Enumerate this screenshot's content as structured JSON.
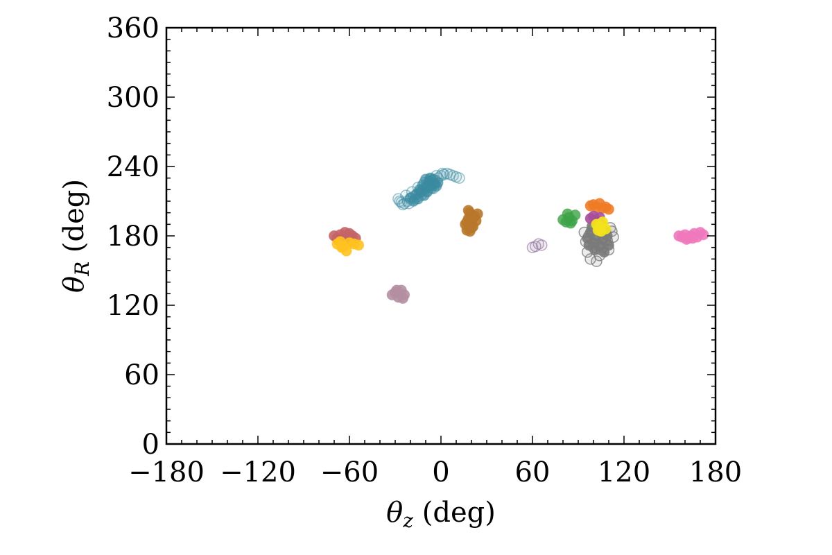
{
  "chart_data": {
    "type": "scatter",
    "title": "",
    "xlabel": {
      "symbol": "θ",
      "sub": "z",
      "unit": " (deg)"
    },
    "ylabel": {
      "symbol": "θ",
      "sub": "R",
      "unit": " (deg)"
    },
    "xlim": [
      -180,
      180
    ],
    "ylim": [
      0,
      360
    ],
    "x_ticks": [
      -180,
      -120,
      -60,
      0,
      60,
      120,
      180
    ],
    "x_tick_labels": [
      "−180",
      "−120",
      "−60",
      "0",
      "60",
      "120",
      "180"
    ],
    "y_ticks": [
      0,
      60,
      120,
      180,
      240,
      300,
      360
    ],
    "y_tick_labels": [
      "0",
      "60",
      "120",
      "180",
      "240",
      "300",
      "360"
    ],
    "grid": false,
    "clusters": [
      {
        "color": "#3a8aa0",
        "opacity": 0.25,
        "filled": false,
        "points": [
          [
            -28,
            212
          ],
          [
            -26,
            209
          ],
          [
            -24,
            208
          ],
          [
            -22,
            210
          ],
          [
            -20,
            212
          ],
          [
            -18,
            214
          ],
          [
            -16,
            216
          ],
          [
            -14,
            218
          ],
          [
            -12,
            220
          ],
          [
            -10,
            222
          ],
          [
            -8,
            224
          ],
          [
            -6,
            226
          ],
          [
            -4,
            228
          ],
          [
            -2,
            230
          ],
          [
            0,
            232
          ],
          [
            2,
            233
          ],
          [
            4,
            234
          ],
          [
            6,
            233
          ],
          [
            8,
            232
          ],
          [
            10,
            231
          ],
          [
            12,
            230
          ],
          [
            -25,
            207
          ],
          [
            -21,
            208
          ],
          [
            -17,
            212
          ],
          [
            -13,
            215
          ],
          [
            -9,
            219
          ],
          [
            -5,
            221
          ],
          [
            -11,
            226
          ],
          [
            -7,
            229
          ],
          [
            -3,
            232
          ],
          [
            1,
            234
          ],
          [
            -15,
            222
          ],
          [
            -19,
            218
          ],
          [
            -23,
            215
          ],
          [
            -27,
            210
          ]
        ]
      },
      {
        "color": "#3a8aa0",
        "opacity": 0.7,
        "filled": true,
        "points": [
          [
            -16,
            216
          ],
          [
            -13,
            218
          ],
          [
            -10,
            221
          ],
          [
            -7,
            223
          ],
          [
            -4,
            225
          ],
          [
            -12,
            224
          ],
          [
            -8,
            227
          ],
          [
            -5,
            229
          ],
          [
            -14,
            220
          ],
          [
            -9,
            218
          ],
          [
            -6,
            221
          ],
          [
            -3,
            223
          ],
          [
            -11,
            215
          ],
          [
            -15,
            212
          ],
          [
            -18,
            210
          ],
          [
            -20,
            213
          ],
          [
            -2,
            226
          ],
          [
            -7,
            230
          ],
          [
            -10,
            229
          ]
        ]
      },
      {
        "color": "#b8772a",
        "opacity": 0.9,
        "filled": true,
        "points": [
          [
            16,
            190
          ],
          [
            17,
            185
          ],
          [
            18,
            195
          ],
          [
            19,
            200
          ],
          [
            20,
            192
          ],
          [
            21,
            188
          ],
          [
            22,
            197
          ],
          [
            23,
            193
          ],
          [
            24,
            199
          ],
          [
            18,
            202
          ],
          [
            19,
            184
          ],
          [
            21,
            196
          ],
          [
            17,
            192
          ],
          [
            20,
            187
          ]
        ]
      },
      {
        "color": "#c46466",
        "opacity": 0.9,
        "filled": true,
        "points": [
          [
            -70,
            180
          ],
          [
            -68,
            178
          ],
          [
            -66,
            181
          ],
          [
            -64,
            177
          ],
          [
            -62,
            179
          ],
          [
            -60,
            182
          ],
          [
            -58,
            180
          ],
          [
            -56,
            178
          ],
          [
            -67,
            176
          ],
          [
            -63,
            183
          ],
          [
            -59,
            176
          ]
        ]
      },
      {
        "color": "#ffc21f",
        "opacity": 0.9,
        "filled": true,
        "points": [
          [
            -68,
            173
          ],
          [
            -66,
            175
          ],
          [
            -64,
            171
          ],
          [
            -62,
            167
          ],
          [
            -60,
            174
          ],
          [
            -57,
            173
          ],
          [
            -54,
            172
          ],
          [
            -65,
            170
          ]
        ]
      },
      {
        "color": "#b48fa2",
        "opacity": 0.9,
        "filled": true,
        "points": [
          [
            -32,
            129
          ],
          [
            -30,
            131
          ],
          [
            -28,
            127
          ],
          [
            -26,
            133
          ],
          [
            -24,
            129
          ],
          [
            -25,
            126
          ],
          [
            -29,
            133
          ]
        ]
      },
      {
        "color": "#9b82a8",
        "opacity": 0.35,
        "filled": false,
        "points": [
          [
            60,
            170
          ],
          [
            62,
            171
          ],
          [
            64,
            173
          ],
          [
            66,
            172
          ]
        ]
      },
      {
        "color": "#3ca247",
        "opacity": 0.8,
        "filled": true,
        "points": [
          [
            80,
            194
          ],
          [
            82,
            192
          ],
          [
            84,
            196
          ],
          [
            86,
            193
          ],
          [
            88,
            198
          ],
          [
            85,
            191
          ],
          [
            83,
            199
          ]
        ]
      },
      {
        "color": "#7a7a7a",
        "opacity": 0.4,
        "filled": false,
        "points": [
          [
            95,
            175
          ],
          [
            97,
            180
          ],
          [
            99,
            185
          ],
          [
            101,
            178
          ],
          [
            103,
            172
          ],
          [
            105,
            168
          ],
          [
            107,
            182
          ],
          [
            109,
            176
          ],
          [
            111,
            187
          ],
          [
            113,
            179
          ],
          [
            96,
            166
          ],
          [
            98,
            160
          ],
          [
            100,
            170
          ],
          [
            102,
            158
          ],
          [
            104,
            163
          ],
          [
            106,
            170
          ],
          [
            108,
            177
          ],
          [
            110,
            168
          ],
          [
            94,
            183
          ],
          [
            112,
            184
          ]
        ]
      },
      {
        "color": "#7a7a7a",
        "opacity": 0.9,
        "filled": true,
        "points": [
          [
            96,
            178
          ],
          [
            98,
            183
          ],
          [
            100,
            174
          ],
          [
            102,
            180
          ],
          [
            104,
            171
          ],
          [
            106,
            177
          ],
          [
            108,
            184
          ],
          [
            110,
            172
          ],
          [
            99,
            188
          ],
          [
            103,
            186
          ],
          [
            101,
            168
          ],
          [
            105,
            190
          ],
          [
            107,
            166
          ],
          [
            97,
            172
          ],
          [
            109,
            180
          ]
        ]
      },
      {
        "color": "#ef7b26",
        "opacity": 0.9,
        "filled": true,
        "points": [
          [
            98,
            206
          ],
          [
            100,
            207
          ],
          [
            102,
            205
          ],
          [
            104,
            208
          ],
          [
            106,
            204
          ],
          [
            108,
            205
          ],
          [
            110,
            203
          ]
        ]
      },
      {
        "color": "#a74e9a",
        "opacity": 0.9,
        "filled": true,
        "points": [
          [
            98,
            195
          ],
          [
            100,
            197
          ],
          [
            102,
            193
          ],
          [
            104,
            196
          ]
        ]
      },
      {
        "color": "#f2e31e",
        "opacity": 0.95,
        "filled": true,
        "points": [
          [
            102,
            190
          ],
          [
            104,
            188
          ],
          [
            106,
            192
          ],
          [
            108,
            186
          ],
          [
            105,
            184
          ],
          [
            103,
            185
          ]
        ]
      },
      {
        "color": "#ef78bd",
        "opacity": 0.9,
        "filled": true,
        "points": [
          [
            156,
            180
          ],
          [
            158,
            179
          ],
          [
            160,
            181
          ],
          [
            162,
            178
          ],
          [
            164,
            180
          ],
          [
            166,
            182
          ],
          [
            168,
            179
          ],
          [
            170,
            183
          ],
          [
            172,
            181
          ],
          [
            161,
            177
          ],
          [
            165,
            178
          ]
        ]
      }
    ]
  }
}
